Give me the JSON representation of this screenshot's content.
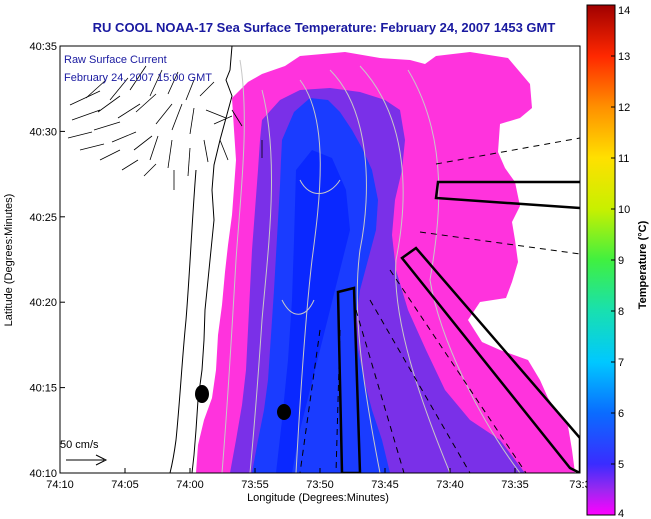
{
  "title": "RU COOL  NOAA-17  Sea Surface Temperature:  February 24, 2007 1453 GMT",
  "inset": {
    "line1": "Raw Surface Current",
    "line2": "February 24, 2007 15:00 GMT"
  },
  "scale_label": "50 cm/s",
  "xlabel": "Longitude (Degrees:Minutes)",
  "ylabel": "Latitude (Degrees:Minutes)",
  "x_ticks": [
    "74:10",
    "74:05",
    "74:00",
    "73:55",
    "73:50",
    "73:45",
    "73:40",
    "73:35",
    "73:3"
  ],
  "y_ticks": [
    "40:35",
    "40:30",
    "40:25",
    "40:20",
    "40:15",
    "40:10"
  ],
  "colorbar": {
    "label": "Temperature (°C)",
    "min": 4,
    "max": 14,
    "ticks": [
      "14",
      "13",
      "12",
      "11",
      "10",
      "9",
      "8",
      "7",
      "6",
      "5",
      "4"
    ]
  },
  "colors": {
    "title": "#1a1aa0",
    "sst_warm": "#ff33dd",
    "sst_mid": "#7a30e8",
    "sst_cold": "#1a3cff"
  }
}
